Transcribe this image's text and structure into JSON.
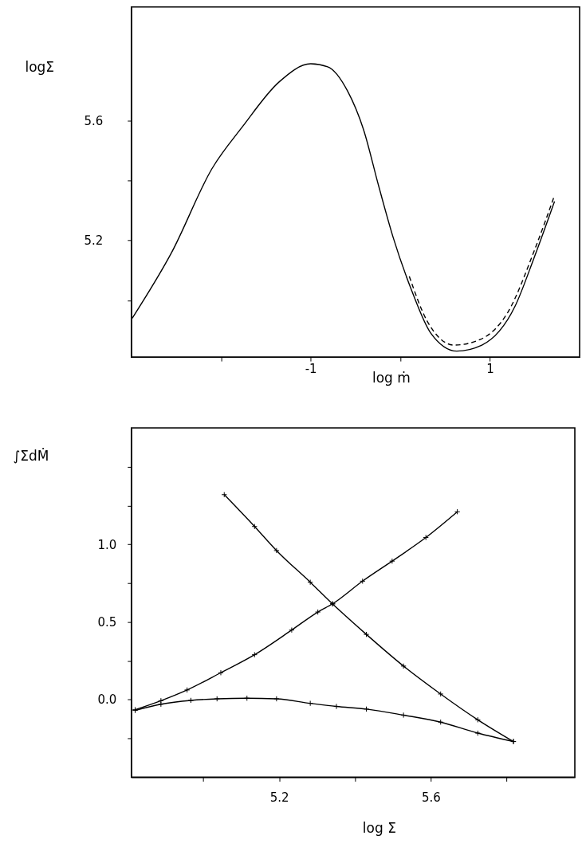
{
  "chart_data": [
    {
      "type": "line",
      "xlabel": "log ṁ",
      "ylabel": "logΣ",
      "xlim": [
        -3,
        2
      ],
      "ylim": [
        4.81,
        5.98
      ],
      "xticks": [
        {
          "value": -2,
          "label": null
        },
        -1,
        {
          "value": 0,
          "label": null
        },
        1
      ],
      "yticks": [
        {
          "value": 5.0,
          "label": null
        },
        5.2,
        {
          "value": 5.4,
          "label": null
        },
        5.6
      ],
      "grid": false,
      "marker": "none",
      "series": [
        {
          "color": "#000000",
          "line_style": "solid",
          "x": [
            -2.99,
            -2.55,
            -2.1,
            -1.76,
            -1.35,
            -1.0,
            -0.81,
            -0.59,
            -0.41,
            -0.24,
            -0.08,
            0.13,
            0.34,
            0.63,
            0.91,
            1.28,
            1.49,
            1.72
          ],
          "values": [
            4.94,
            5.16,
            5.44,
            5.58,
            5.73,
            5.79,
            5.78,
            5.7,
            5.57,
            5.38,
            5.21,
            5.03,
            4.89,
            4.83,
            4.85,
            4.98,
            5.14,
            5.33
          ]
        },
        {
          "color": "#000000",
          "line_style": "dashed",
          "x": [
            0.1,
            0.3,
            0.6,
            0.9,
            1.2,
            1.5,
            1.72
          ],
          "values": [
            5.08,
            4.93,
            4.85,
            4.87,
            4.96,
            5.17,
            5.35
          ]
        }
      ]
    },
    {
      "type": "line",
      "xlabel": "log Σ",
      "ylabel": "∫ΣdṀ",
      "xlim": [
        4.81,
        5.98
      ],
      "ylim": [
        -0.5,
        1.75
      ],
      "xticks": [
        {
          "value": 5.0,
          "label": null
        },
        5.2,
        {
          "value": 5.4,
          "label": null
        },
        5.6,
        {
          "value": 5.8,
          "label": null
        }
      ],
      "yticks": [
        {
          "value": -0.25,
          "label": null
        },
        {
          "value": 0,
          "label": "0.0"
        },
        {
          "value": 0.25,
          "label": null
        },
        0.5,
        {
          "value": 0.75,
          "label": null
        },
        {
          "value": 1,
          "label": "1.0"
        },
        {
          "value": 1.25,
          "label": null
        },
        {
          "value": 1.5,
          "label": null
        }
      ],
      "grid": false,
      "marker": "cross",
      "line_style": "solid",
      "series": [
        {
          "color": "#000000",
          "x": [
            5.055,
            5.135,
            5.193,
            5.282,
            5.341,
            5.43,
            5.528,
            5.626,
            5.724,
            5.818
          ],
          "values": [
            1.32,
            1.115,
            0.96,
            0.756,
            0.616,
            0.42,
            0.216,
            0.036,
            -0.13,
            -0.27
          ]
        },
        {
          "color": "#000000",
          "x": [
            4.82,
            4.888,
            4.957,
            5.046,
            5.135,
            5.233,
            5.302,
            5.341,
            5.42,
            5.498,
            5.587,
            5.67
          ],
          "values": [
            -0.065,
            -0.007,
            0.062,
            0.173,
            0.289,
            0.448,
            0.564,
            0.617,
            0.763,
            0.892,
            1.044,
            1.21
          ]
        },
        {
          "color": "#000000",
          "x": [
            4.82,
            4.888,
            4.967,
            5.036,
            5.115,
            5.193,
            5.282,
            5.351,
            5.43,
            5.528,
            5.626,
            5.724,
            5.818
          ],
          "values": [
            -0.07,
            -0.03,
            -0.005,
            0.005,
            0.009,
            0.005,
            -0.024,
            -0.044,
            -0.061,
            -0.1,
            -0.145,
            -0.216,
            -0.27
          ]
        }
      ]
    }
  ]
}
